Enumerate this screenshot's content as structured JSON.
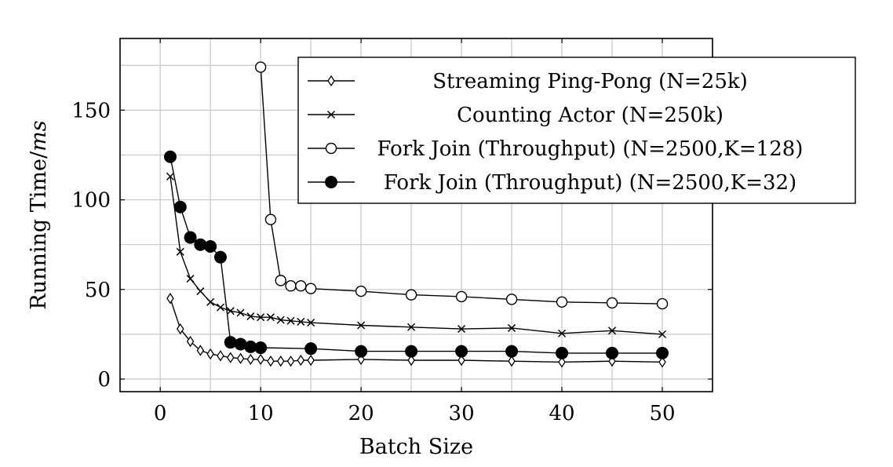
{
  "chart_data": {
    "type": "line",
    "xlabel": "Batch Size",
    "ylabel_main": "Running Time/",
    "ylabel_unit": "ms",
    "xlim": [
      -4,
      55
    ],
    "ylim": [
      -7,
      190
    ],
    "xticks": [
      0,
      10,
      20,
      30,
      40,
      50
    ],
    "yticks": [
      0,
      50,
      100,
      150
    ],
    "grid": true,
    "legend_position": "top-right",
    "series": [
      {
        "name": "Streaming Ping-Pong (N=25k)",
        "marker": "diamond",
        "x": [
          1,
          2,
          3,
          4,
          5,
          6,
          7,
          8,
          9,
          10,
          11,
          12,
          13,
          14,
          15,
          20,
          25,
          30,
          35,
          40,
          45,
          50
        ],
        "y": [
          45,
          28,
          21,
          16,
          14,
          13,
          12,
          11.5,
          11,
          11,
          10,
          10,
          10,
          10.5,
          10.5,
          11,
          10.5,
          10.5,
          10,
          9.5,
          10,
          9.5
        ]
      },
      {
        "name": "Counting Actor (N=250k)",
        "marker": "cross",
        "x": [
          1,
          2,
          3,
          4,
          5,
          6,
          7,
          8,
          9,
          10,
          11,
          12,
          13,
          14,
          15,
          20,
          25,
          30,
          35,
          40,
          45,
          50
        ],
        "y": [
          113,
          71,
          56,
          49,
          43,
          40,
          38,
          37,
          35,
          34.5,
          34.5,
          33,
          32.5,
          32,
          31.5,
          30,
          29,
          28,
          28.5,
          25.5,
          27,
          25
        ]
      },
      {
        "name": "Fork Join (Throughput) (N=2500,K=128)",
        "marker": "circle-open",
        "x": [
          10,
          11,
          12,
          13,
          14,
          15,
          20,
          25,
          30,
          35,
          40,
          45,
          50
        ],
        "y": [
          174,
          89,
          55,
          52,
          52,
          50.5,
          49,
          47,
          46,
          44.5,
          43,
          42.5,
          42
        ]
      },
      {
        "name": "Fork Join (Throughput) (N=2500,K=32)",
        "marker": "circle-filled",
        "x": [
          1,
          2,
          3,
          4,
          5,
          6,
          7,
          8,
          9,
          10,
          15,
          20,
          25,
          30,
          35,
          40,
          45,
          50
        ],
        "y": [
          124,
          96,
          79,
          75,
          74,
          68,
          20.5,
          19.5,
          18,
          17.5,
          17,
          15.5,
          15.5,
          15.5,
          15.5,
          14.5,
          14.5,
          14.5
        ]
      }
    ]
  }
}
